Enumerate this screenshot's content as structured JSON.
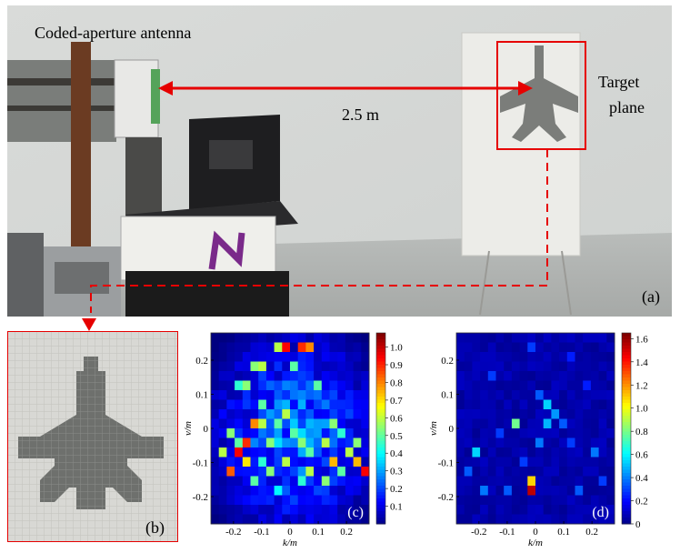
{
  "figure": {
    "photo_a": {
      "title": "Coded-aperture antenna",
      "distance": "2.5 m",
      "target_line1": "Target",
      "target_line2": "plane",
      "panel_label": "(a)"
    },
    "thumb_b": {
      "panel_label": "(b)"
    },
    "colors": {
      "annotation": "#e60000",
      "frame_red": "#ff2222"
    }
  },
  "chart_data": [
    {
      "type": "heatmap",
      "panel_label": "(c)",
      "xlabel": "k/m",
      "ylabel": "v/m",
      "xticks": [
        "-0.2",
        "-0.1",
        "0",
        "0.1",
        "0.2"
      ],
      "yticks": [
        "0.2",
        "0.1",
        "0",
        "-0.1",
        "-0.2"
      ],
      "xlim": [
        -0.28,
        0.28
      ],
      "ylim": [
        -0.28,
        0.28
      ],
      "colorbar": {
        "min": 0,
        "max": 1.08,
        "ticks": [
          "1.0",
          "0.9",
          "0.8",
          "0.7",
          "0.6",
          "0.5",
          "0.4",
          "0.3",
          "0.2",
          "0.1"
        ]
      },
      "grid_size": 20,
      "hot_cells": [
        [
          9,
          1,
          0.95
        ],
        [
          11,
          1,
          0.9
        ],
        [
          12,
          1,
          0.8
        ],
        [
          8,
          1,
          0.6
        ],
        [
          5,
          3,
          0.55
        ],
        [
          6,
          3,
          0.6
        ],
        [
          10,
          3,
          0.5
        ],
        [
          3,
          5,
          0.45
        ],
        [
          4,
          5,
          0.55
        ],
        [
          13,
          5,
          0.5
        ],
        [
          6,
          7,
          0.5
        ],
        [
          9,
          8,
          0.6
        ],
        [
          5,
          9,
          0.8
        ],
        [
          6,
          9,
          0.6
        ],
        [
          8,
          9,
          0.5
        ],
        [
          15,
          9,
          0.55
        ],
        [
          2,
          10,
          0.55
        ],
        [
          10,
          10,
          0.5
        ],
        [
          16,
          10,
          0.45
        ],
        [
          3,
          11,
          0.5
        ],
        [
          4,
          11,
          0.9
        ],
        [
          7,
          11,
          0.55
        ],
        [
          11,
          11,
          0.55
        ],
        [
          14,
          11,
          0.6
        ],
        [
          18,
          11,
          0.55
        ],
        [
          1,
          12,
          0.6
        ],
        [
          3,
          12,
          0.95
        ],
        [
          12,
          12,
          0.5
        ],
        [
          17,
          12,
          0.6
        ],
        [
          4,
          13,
          0.7
        ],
        [
          6,
          13,
          0.45
        ],
        [
          9,
          13,
          0.6
        ],
        [
          15,
          13,
          0.75
        ],
        [
          18,
          13,
          0.75
        ],
        [
          2,
          14,
          0.85
        ],
        [
          7,
          14,
          0.55
        ],
        [
          12,
          14,
          0.6
        ],
        [
          16,
          14,
          0.5
        ],
        [
          19,
          14,
          0.95
        ],
        [
          5,
          15,
          0.5
        ],
        [
          11,
          15,
          0.45
        ],
        [
          14,
          15,
          0.55
        ],
        [
          8,
          16,
          0.4
        ]
      ]
    },
    {
      "type": "heatmap",
      "panel_label": "(d)",
      "xlabel": "k/m",
      "ylabel": "v/m",
      "xticks": [
        "-0.2",
        "-0.1",
        "0",
        "0.1",
        "0.2"
      ],
      "yticks": [
        "0.2",
        "0.1",
        "0",
        "-0.1",
        "-0.2"
      ],
      "xlim": [
        -0.28,
        0.28
      ],
      "ylim": [
        -0.28,
        0.28
      ],
      "colorbar": {
        "min": 0,
        "max": 1.65,
        "ticks": [
          "1.6",
          "1.4",
          "1.2",
          "1.0",
          "0.8",
          "0.6",
          "0.4",
          "0.2",
          "0"
        ]
      },
      "grid_size": 20,
      "hot_cells": [
        [
          9,
          1,
          0.3
        ],
        [
          14,
          2,
          0.25
        ],
        [
          4,
          4,
          0.3
        ],
        [
          16,
          5,
          0.25
        ],
        [
          10,
          6,
          0.35
        ],
        [
          11,
          7,
          0.55
        ],
        [
          12,
          8,
          0.45
        ],
        [
          7,
          9,
          0.8
        ],
        [
          11,
          9,
          0.5
        ],
        [
          13,
          9,
          0.35
        ],
        [
          5,
          10,
          0.3
        ],
        [
          10,
          11,
          0.4
        ],
        [
          14,
          11,
          0.3
        ],
        [
          2,
          12,
          0.55
        ],
        [
          17,
          12,
          0.4
        ],
        [
          8,
          13,
          0.3
        ],
        [
          1,
          14,
          0.35
        ],
        [
          9,
          15,
          1.1
        ],
        [
          9,
          16,
          1.55
        ],
        [
          3,
          16,
          0.4
        ],
        [
          6,
          16,
          0.35
        ],
        [
          15,
          16,
          0.35
        ],
        [
          18,
          15,
          0.3
        ]
      ]
    }
  ]
}
